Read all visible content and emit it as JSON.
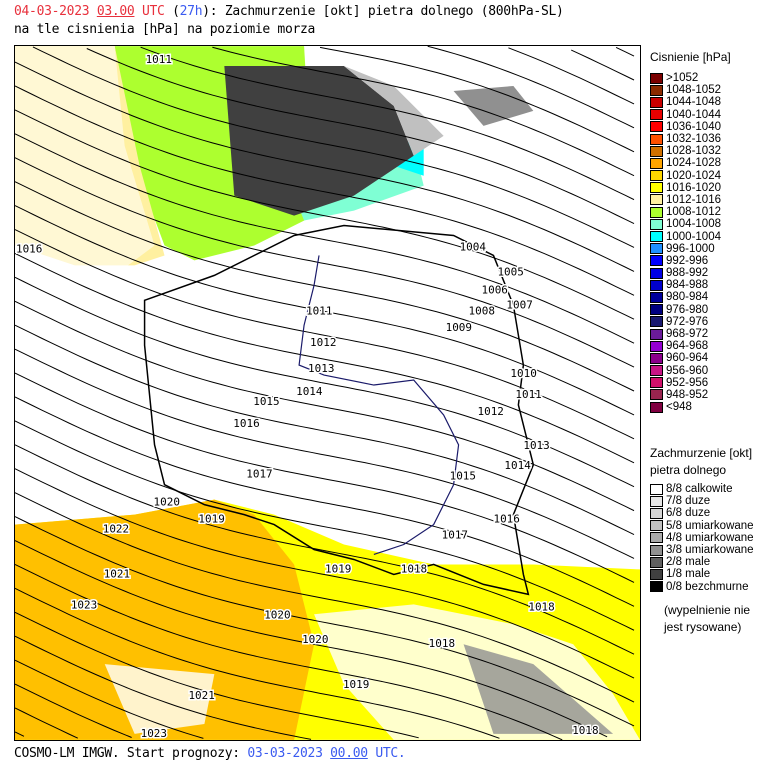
{
  "header": {
    "date": "04-03-2023",
    "hour": "03.00",
    "utc": "UTC",
    "lead_open": "(",
    "lead": "27h",
    "lead_close": ")",
    "title_rest": ": Zachmurzenie [okt] pietra dolnego (800hPa-SL)",
    "line2": "na tle cisnienia [hPa] na poziomie morza"
  },
  "footer": {
    "model": "COSMO-LM IMGW. Start prognozy:",
    "start_date": "03-03-2023",
    "start_hour": "00.00",
    "utc": "UTC."
  },
  "pressure_legend": {
    "title": "Cisnienie [hPa]",
    "items": [
      {
        "label": ">1052",
        "color": "#7a0000"
      },
      {
        "label": "1048-1052",
        "color": "#8b2a00"
      },
      {
        "label": "1044-1048",
        "color": "#c80000"
      },
      {
        "label": "1040-1044",
        "color": "#e80000"
      },
      {
        "label": "1036-1040",
        "color": "#ff0000"
      },
      {
        "label": "1032-1036",
        "color": "#ff5000"
      },
      {
        "label": "1028-1032",
        "color": "#d07000"
      },
      {
        "label": "1024-1028",
        "color": "#ffa500"
      },
      {
        "label": "1020-1024",
        "color": "#ffd700"
      },
      {
        "label": "1016-1020",
        "color": "#ffff00"
      },
      {
        "label": "1012-1016",
        "color": "#fff0a0"
      },
      {
        "label": "1008-1012",
        "color": "#adff2f"
      },
      {
        "label": "1004-1008",
        "color": "#7fffd4"
      },
      {
        "label": "1000-1004",
        "color": "#00ffff"
      },
      {
        "label": "996-1000",
        "color": "#1e90ff"
      },
      {
        "label": "992-996",
        "color": "#0000ff"
      },
      {
        "label": "988-992",
        "color": "#0000e6"
      },
      {
        "label": "984-988",
        "color": "#0000cd"
      },
      {
        "label": "980-984",
        "color": "#00009a"
      },
      {
        "label": "976-980",
        "color": "#000080"
      },
      {
        "label": "972-976",
        "color": "#191970"
      },
      {
        "label": "968-972",
        "color": "#6a1b9a"
      },
      {
        "label": "964-968",
        "color": "#9400d3"
      },
      {
        "label": "960-964",
        "color": "#8b008b"
      },
      {
        "label": "956-960",
        "color": "#c71585"
      },
      {
        "label": "952-956",
        "color": "#d0106a"
      },
      {
        "label": "948-952",
        "color": "#99244f"
      },
      {
        "label": "<948",
        "color": "#800040"
      }
    ]
  },
  "cloud_legend": {
    "title1": "Zachmurzenie [okt]",
    "title2": "pietra dolnego",
    "items": [
      {
        "label": "8/8 calkowite",
        "color": "#ffffff"
      },
      {
        "label": "7/8 duze",
        "color": "#e6e6e6"
      },
      {
        "label": "6/8 duze",
        "color": "#d6d6d6"
      },
      {
        "label": "5/8 umiarkowane",
        "color": "#c0c0c0"
      },
      {
        "label": "4/8 umiarkowane",
        "color": "#aaaaaa"
      },
      {
        "label": "3/8 umiarkowane",
        "color": "#909090"
      },
      {
        "label": "2/8 male",
        "color": "#606060"
      },
      {
        "label": "1/8 male",
        "color": "#404040"
      },
      {
        "label": "0/8 bezchmurne",
        "color": "#000000"
      }
    ],
    "note1": "(wypelnienie nie",
    "note2": "jest rysowane)"
  },
  "isobar_labels": [
    "1011",
    "1016",
    "1004",
    "1005",
    "1006",
    "1007",
    "1008",
    "1009",
    "1011",
    "1012",
    "1013",
    "1014",
    "1015",
    "1016",
    "1010",
    "1011",
    "1012",
    "1013",
    "1014",
    "1015",
    "1017",
    "1016",
    "1017",
    "1020",
    "1019",
    "1022",
    "1021",
    "1023",
    "1019",
    "1018",
    "1018",
    "1020",
    "1020",
    "1018",
    "1019",
    "1021",
    "1023",
    "1018"
  ]
}
